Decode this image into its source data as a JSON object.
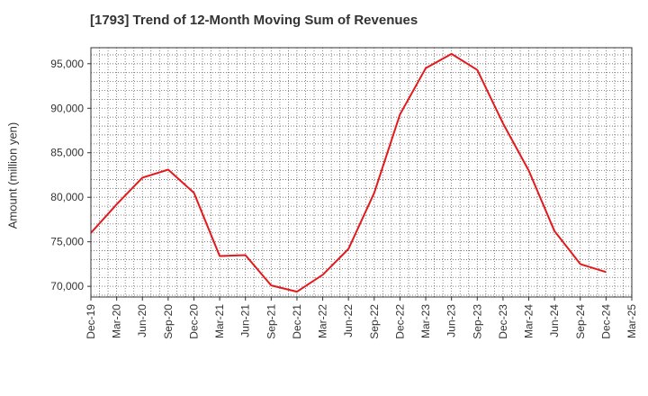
{
  "chart_data": {
    "type": "line",
    "title": "[1793]  Trend of 12-Month Moving Sum of Revenues",
    "xlabel": "",
    "ylabel": "Amount (million yen)",
    "categories": [
      "Dec-19",
      "Mar-20",
      "Jun-20",
      "Sep-20",
      "Dec-20",
      "Mar-21",
      "Jun-21",
      "Sep-21",
      "Dec-21",
      "Mar-22",
      "Jun-22",
      "Sep-22",
      "Dec-22",
      "Mar-23",
      "Jun-23",
      "Sep-23",
      "Dec-23",
      "Mar-24",
      "Jun-24",
      "Sep-24",
      "Dec-24",
      "Mar-25"
    ],
    "yticks": [
      "70,000",
      "75,000",
      "80,000",
      "85,000",
      "90,000",
      "95,000"
    ],
    "ytick_values": [
      70000,
      75000,
      80000,
      85000,
      90000,
      95000
    ],
    "ylim": [
      68800,
      96800
    ],
    "grid": true,
    "series": [
      {
        "values": [
          76000,
          79200,
          82200,
          83100,
          80500,
          73400,
          73500,
          70100,
          69400,
          71300,
          74200,
          80500,
          89300,
          94500,
          96100,
          94300,
          88300,
          83000,
          76200,
          72500,
          71600,
          null
        ],
        "color": "#e31a1c"
      }
    ]
  }
}
